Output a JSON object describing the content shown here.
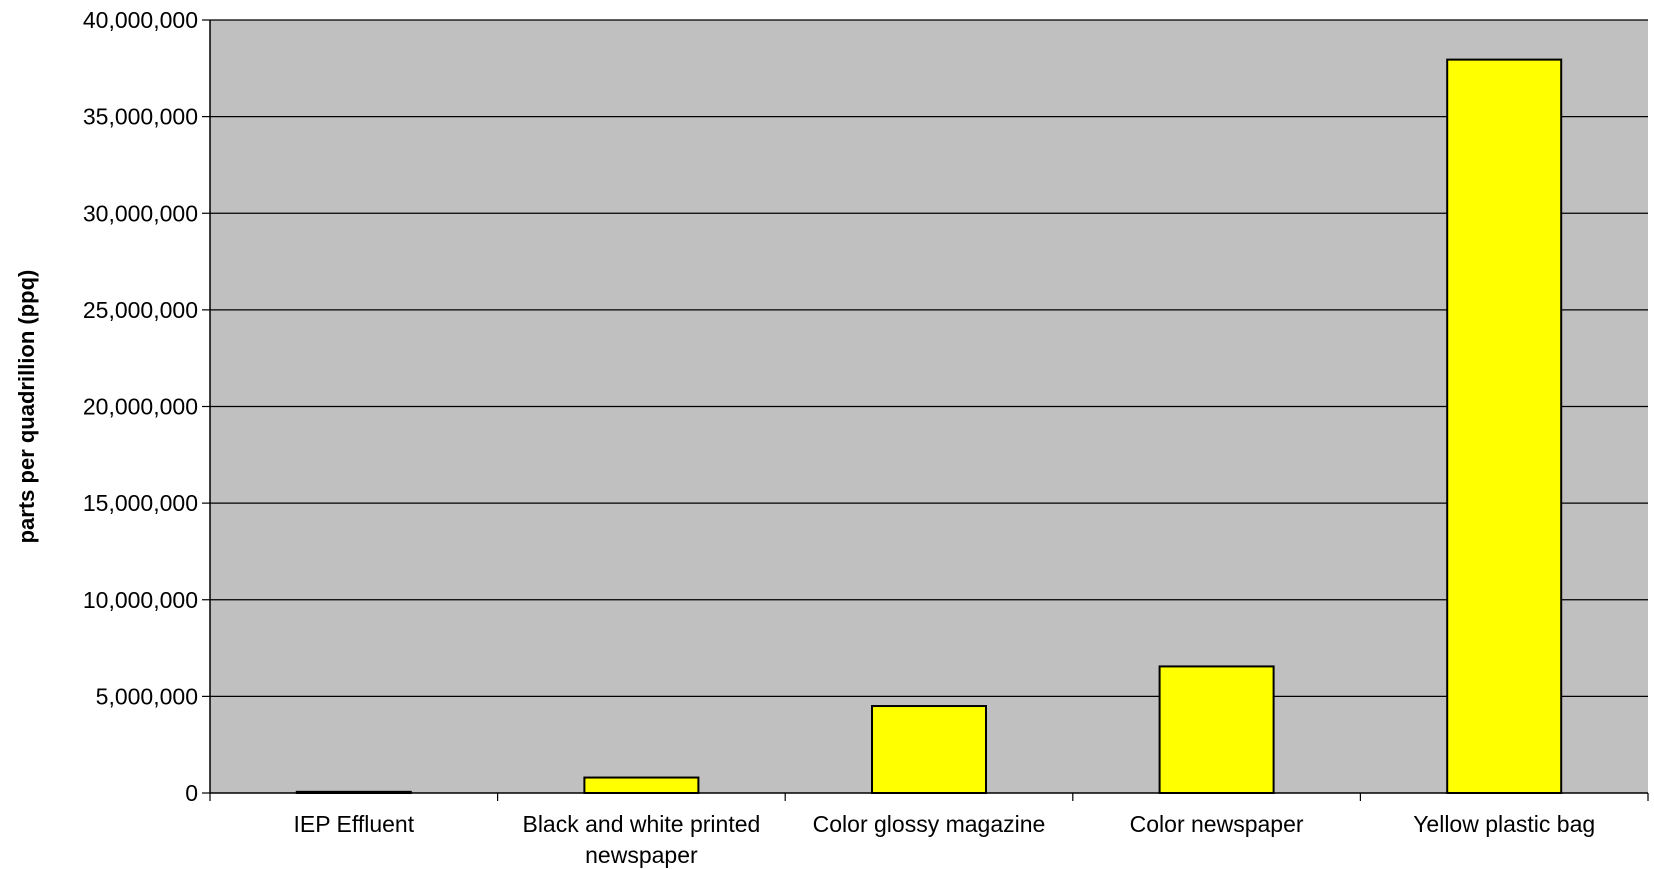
{
  "chart_data": {
    "type": "bar",
    "title": "",
    "xlabel": "",
    "ylabel": "parts per quadrillion (ppq)",
    "categories": [
      [
        "IEP Effluent"
      ],
      [
        "Black and white printed",
        "newspaper"
      ],
      [
        "Color glossy magazine"
      ],
      [
        "Color newspaper"
      ],
      [
        "Yellow plastic bag"
      ]
    ],
    "values": [
      60000,
      800000,
      4500000,
      6550000,
      37950000
    ],
    "ylim": [
      0,
      40000000
    ],
    "yticks": [
      0,
      5000000,
      10000000,
      15000000,
      20000000,
      25000000,
      30000000,
      35000000,
      40000000
    ],
    "ytick_labels": [
      "0",
      "5,000,000",
      "10,000,000",
      "15,000,000",
      "20,000,000",
      "25,000,000",
      "30,000,000",
      "35,000,000",
      "40,000,000"
    ],
    "grid": true,
    "legend": "none"
  },
  "colors": {
    "plot_background": "#c0c0c0",
    "bar_fill": "#ffff00",
    "bar_stroke": "#000000",
    "gridline": "#000000"
  }
}
